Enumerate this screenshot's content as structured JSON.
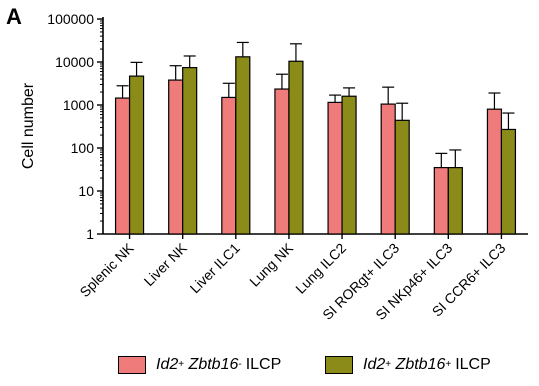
{
  "panel_label": "A",
  "chart_data": {
    "type": "bar",
    "title": "",
    "xlabel": "",
    "ylabel": "Cell number",
    "yscale": "log",
    "ylim": [
      1,
      100000
    ],
    "yticks": [
      "1",
      "10",
      "100",
      "1000",
      "10000",
      "100000"
    ],
    "categories": [
      "Splenic NK",
      "Liver NK",
      "Liver ILC1",
      "Lung NK",
      "Lung ILC2",
      "SI RORgt+ ILC3",
      "SI NKp46+ ILC3",
      "SI CCR6+ ILC3"
    ],
    "series": [
      {
        "name": "Id2+ Zbtb16- ILCP",
        "color": "#f07b7b",
        "values": [
          1450,
          3800,
          1500,
          2350,
          1150,
          1050,
          35,
          800
        ],
        "errors_upper": [
          2800,
          8200,
          3200,
          5200,
          1700,
          2600,
          75,
          1900
        ]
      },
      {
        "name": "Id2+ Zbtb16+ ILCP",
        "color": "#8b8b1a",
        "values": [
          4700,
          7400,
          13200,
          10400,
          1600,
          440,
          35,
          270
        ],
        "errors_upper": [
          9800,
          13800,
          28500,
          26500,
          2500,
          1100,
          90,
          650
        ]
      }
    ],
    "legend_position": "bottom",
    "grid": false
  },
  "legend": [
    {
      "gene1": "Id2",
      "sup1": "+",
      "gene2": "Zbtb16",
      "sup2": "-",
      "suffix": "ILCP",
      "color": "#f07b7b"
    },
    {
      "gene1": "Id2",
      "sup1": "+",
      "gene2": "Zbtb16",
      "sup2": "+",
      "suffix": "ILCP",
      "color": "#8b8b1a"
    }
  ]
}
